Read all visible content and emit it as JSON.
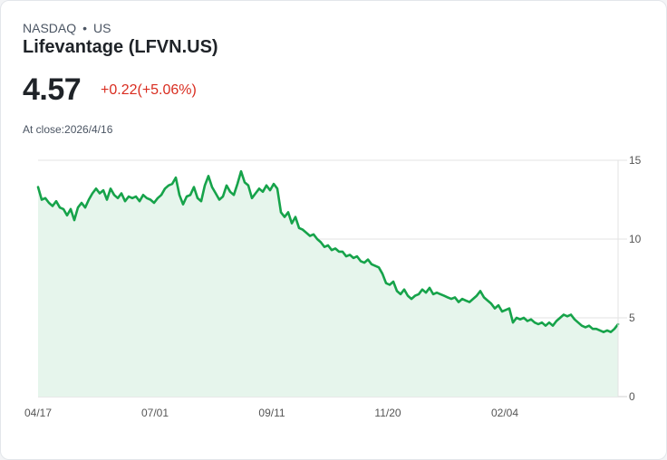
{
  "header": {
    "exchange": "NASDAQ",
    "separator": "•",
    "region": "US",
    "title": "Lifevantage (LFVN.US)",
    "price": "4.57",
    "change": "+0.22(+5.06%)",
    "close_label": "At close:2026/4/16"
  },
  "colors": {
    "line": "#16a34a",
    "fill": "#e6f5ec",
    "change": "#d92d20",
    "grid": "#e3e3e3"
  },
  "chart_data": {
    "type": "area",
    "title": "Lifevantage (LFVN.US)",
    "xlabel": "",
    "ylabel": "",
    "ylim": [
      0,
      15
    ],
    "yticks": [
      0,
      5,
      10,
      15
    ],
    "xtick_labels": [
      "04/17",
      "07/01",
      "09/11",
      "11/20",
      "02/04"
    ],
    "grid": true,
    "y_axis_position": "right",
    "values": [
      13.3,
      12.5,
      12.6,
      12.3,
      12.1,
      12.4,
      12.0,
      11.9,
      11.5,
      11.9,
      11.2,
      12.0,
      12.3,
      12.0,
      12.5,
      12.9,
      13.2,
      12.9,
      13.1,
      12.5,
      13.2,
      12.8,
      12.6,
      12.9,
      12.4,
      12.7,
      12.6,
      12.7,
      12.4,
      12.8,
      12.6,
      12.5,
      12.3,
      12.6,
      12.8,
      13.2,
      13.4,
      13.5,
      13.9,
      12.8,
      12.2,
      12.7,
      12.8,
      13.3,
      12.6,
      12.4,
      13.4,
      14.0,
      13.3,
      12.9,
      12.5,
      12.7,
      13.4,
      13.0,
      12.8,
      13.5,
      14.3,
      13.6,
      13.4,
      12.6,
      12.9,
      13.2,
      13.0,
      13.4,
      13.1,
      13.5,
      13.2,
      11.7,
      11.4,
      11.7,
      11.0,
      11.4,
      10.7,
      10.6,
      10.4,
      10.2,
      10.3,
      10.0,
      9.8,
      9.5,
      9.6,
      9.3,
      9.4,
      9.2,
      9.2,
      8.9,
      9.0,
      8.8,
      8.9,
      8.6,
      8.5,
      8.7,
      8.4,
      8.3,
      8.2,
      7.8,
      7.2,
      7.1,
      7.3,
      6.7,
      6.5,
      6.8,
      6.4,
      6.2,
      6.4,
      6.5,
      6.8,
      6.6,
      6.9,
      6.5,
      6.6,
      6.5,
      6.4,
      6.3,
      6.2,
      6.3,
      6.0,
      6.2,
      6.1,
      6.0,
      6.2,
      6.4,
      6.7,
      6.3,
      6.1,
      5.9,
      5.6,
      5.8,
      5.4,
      5.5,
      5.6,
      4.7,
      5.0,
      4.9,
      5.0,
      4.8,
      4.9,
      4.7,
      4.6,
      4.7,
      4.5,
      4.7,
      4.5,
      4.8,
      5.0,
      5.2,
      5.1,
      5.2,
      4.9,
      4.7,
      4.5,
      4.4,
      4.5,
      4.3,
      4.3,
      4.2,
      4.1,
      4.2,
      4.1,
      4.3,
      4.6
    ]
  }
}
